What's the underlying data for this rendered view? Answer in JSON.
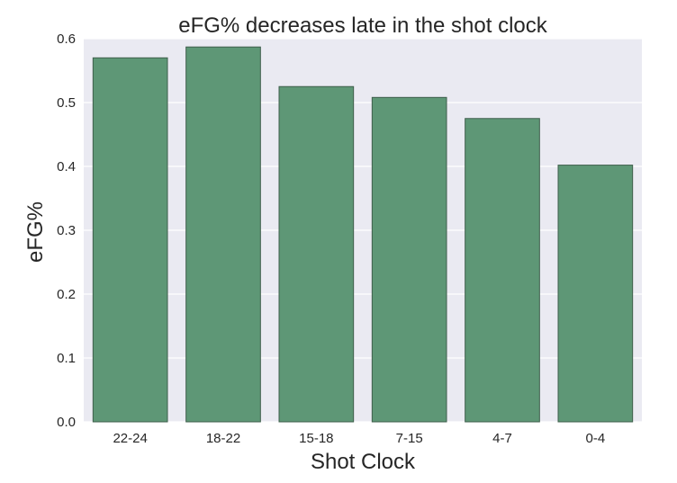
{
  "chart_data": {
    "type": "bar",
    "title": "eFG% decreases late in the shot clock",
    "xlabel": "Shot Clock",
    "ylabel": "eFG%",
    "categories": [
      "22-24",
      "18-22",
      "15-18",
      "7-15",
      "4-7",
      "0-4"
    ],
    "values": [
      0.57,
      0.587,
      0.525,
      0.508,
      0.475,
      0.402
    ],
    "ylim": [
      0,
      0.6
    ],
    "yticks": [
      "0.0",
      "0.1",
      "0.2",
      "0.3",
      "0.4",
      "0.5",
      "0.6"
    ],
    "grid": true,
    "colors": {
      "bar": "#5e9776",
      "bar_edge": "#3f5f4c",
      "plot_bg": "#eaeaf2",
      "grid": "#ffffff"
    }
  }
}
